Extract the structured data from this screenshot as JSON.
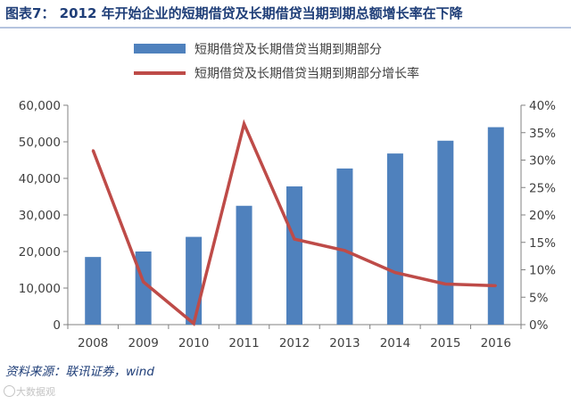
{
  "chart_data": {
    "type": "bar",
    "title": "图表7：  2012 年开始企业的短期借贷及长期借贷当期到期总额增长率在下降",
    "categories": [
      "2008",
      "2009",
      "2010",
      "2011",
      "2012",
      "2013",
      "2014",
      "2015",
      "2016"
    ],
    "series": [
      {
        "name": "短期借贷及长期借贷当期到期部分",
        "type": "bar",
        "axis": "left",
        "color": "#4f81bd",
        "values": [
          18500,
          20000,
          24000,
          32500,
          37800,
          42700,
          46800,
          50300,
          54000
        ]
      },
      {
        "name": "短期借贷及长期借贷当期到期部分增长率",
        "type": "line",
        "axis": "right",
        "color": "#be4b48",
        "values": [
          31.8,
          7.8,
          0.2,
          36.6,
          15.6,
          13.5,
          9.5,
          7.4,
          7.1
        ]
      }
    ],
    "y_left": {
      "min": 0,
      "max": 60000,
      "ticks": [
        0,
        10000,
        20000,
        30000,
        40000,
        50000,
        60000
      ],
      "tick_labels": [
        "0",
        "10,000",
        "20,000",
        "30,000",
        "40,000",
        "50,000",
        "60,000"
      ]
    },
    "y_right": {
      "min": 0,
      "max": 40,
      "ticks": [
        0,
        5,
        10,
        15,
        20,
        25,
        30,
        35,
        40
      ],
      "tick_labels": [
        "0%",
        "5%",
        "10%",
        "15%",
        "20%",
        "25%",
        "30%",
        "35%",
        "40%"
      ]
    },
    "grid": false,
    "legend": "top-center",
    "source": "资料来源：联讯证券，wind"
  },
  "watermark": "大数据观"
}
